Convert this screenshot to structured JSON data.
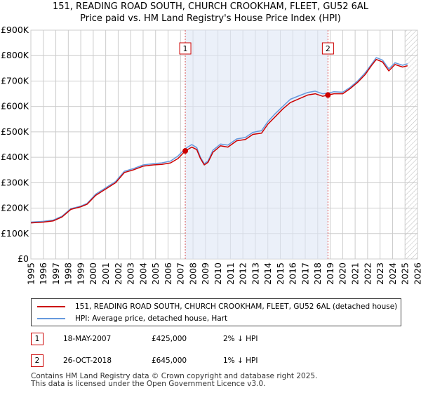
{
  "chart_data": {
    "type": "line",
    "title": "151, READING ROAD SOUTH, CHURCH CROOKHAM, FLEET, GU52 6AL",
    "subtitle": "Price paid vs. HM Land Registry's House Price Index (HPI)",
    "xlabel": "",
    "ylabel": "",
    "xlim": [
      1995,
      2026
    ],
    "ylim": [
      0,
      900000
    ],
    "y_ticks": [
      0,
      100000,
      200000,
      300000,
      400000,
      500000,
      600000,
      700000,
      800000,
      900000
    ],
    "y_tick_labels": [
      "£0",
      "£100K",
      "£200K",
      "£300K",
      "£400K",
      "£500K",
      "£600K",
      "£700K",
      "£800K",
      "£900K"
    ],
    "x_ticks": [
      "1995",
      "1996",
      "1997",
      "1998",
      "1999",
      "2000",
      "2001",
      "2002",
      "2003",
      "2004",
      "2005",
      "2006",
      "2007",
      "2008",
      "2009",
      "2010",
      "2011",
      "2012",
      "2013",
      "2014",
      "2015",
      "2016",
      "2017",
      "2018",
      "2019",
      "2020",
      "2021",
      "2022",
      "2023",
      "2024",
      "2025",
      "2026"
    ],
    "grid": true,
    "series": [
      {
        "name": "151, READING ROAD SOUTH, CHURCH CROOKHAM, FLEET, GU52 6AL (detached house)",
        "color": "#cc0000",
        "x": [
          1995.0,
          1996.0,
          1996.8,
          1997.5,
          1998.2,
          1999.0,
          1999.5,
          2000.2,
          2001.0,
          2001.8,
          2002.5,
          2003.2,
          2004.0,
          2004.8,
          2005.5,
          2006.2,
          2006.8,
          2007.38,
          2007.9,
          2008.3,
          2008.6,
          2008.9,
          2009.2,
          2009.6,
          2010.2,
          2010.8,
          2011.5,
          2012.2,
          2012.8,
          2013.5,
          2014.0,
          2014.6,
          2015.2,
          2015.8,
          2016.5,
          2017.2,
          2017.8,
          2018.4,
          2018.82,
          2019.3,
          2020.0,
          2020.6,
          2021.2,
          2021.8,
          2022.3,
          2022.7,
          2023.2,
          2023.7,
          2024.2,
          2024.8,
          2025.2
        ],
        "y": [
          142000,
          145000,
          150000,
          165000,
          195000,
          205000,
          215000,
          250000,
          275000,
          300000,
          340000,
          350000,
          365000,
          370000,
          372000,
          378000,
          395000,
          425000,
          440000,
          430000,
          395000,
          370000,
          380000,
          420000,
          445000,
          440000,
          465000,
          470000,
          490000,
          495000,
          530000,
          560000,
          590000,
          615000,
          630000,
          645000,
          650000,
          640000,
          645000,
          650000,
          650000,
          670000,
          695000,
          725000,
          760000,
          785000,
          775000,
          740000,
          765000,
          755000,
          760000
        ]
      },
      {
        "name": "HPI: Average price, detached house, Hart",
        "color": "#6699dd",
        "x": [
          1995.0,
          1996.0,
          1996.8,
          1997.5,
          1998.2,
          1999.0,
          1999.5,
          2000.2,
          2001.0,
          2001.8,
          2002.5,
          2003.2,
          2004.0,
          2004.8,
          2005.5,
          2006.2,
          2006.8,
          2007.38,
          2007.9,
          2008.3,
          2008.6,
          2008.9,
          2009.2,
          2009.6,
          2010.2,
          2010.8,
          2011.5,
          2012.2,
          2012.8,
          2013.5,
          2014.0,
          2014.6,
          2015.2,
          2015.8,
          2016.5,
          2017.2,
          2017.8,
          2018.4,
          2018.82,
          2019.3,
          2020.0,
          2020.6,
          2021.2,
          2021.8,
          2022.3,
          2022.7,
          2023.2,
          2023.7,
          2024.2,
          2024.8,
          2025.2
        ],
        "y": [
          145000,
          148000,
          153000,
          168000,
          198000,
          208000,
          218000,
          255000,
          280000,
          305000,
          345000,
          355000,
          370000,
          375000,
          378000,
          385000,
          405000,
          434000,
          450000,
          438000,
          400000,
          375000,
          385000,
          428000,
          452000,
          448000,
          472000,
          478000,
          498000,
          505000,
          540000,
          572000,
          600000,
          628000,
          642000,
          655000,
          660000,
          650000,
          652000,
          658000,
          656000,
          675000,
          700000,
          732000,
          765000,
          792000,
          782000,
          748000,
          772000,
          762000,
          768000
        ]
      }
    ],
    "sales": [
      {
        "label": "1",
        "date": "18-MAY-2007",
        "x": 2007.38,
        "price": 425000,
        "price_label": "£425,000",
        "hpi_note": "2% ↓ HPI"
      },
      {
        "label": "2",
        "date": "26-OCT-2018",
        "x": 2018.82,
        "price": 645000,
        "price_label": "£645,000",
        "hpi_note": "1% ↓ HPI"
      }
    ],
    "forecast_from": 2025.0
  },
  "legend": {
    "property_label": "151, READING ROAD SOUTH, CHURCH CROOKHAM, FLEET, GU52 6AL (detached house)",
    "hpi_label": "HPI: Average price, detached house, Hart",
    "property_color": "#cc0000",
    "hpi_color": "#6699dd"
  },
  "footer": {
    "line1": "Contains HM Land Registry data © Crown copyright and database right 2025.",
    "line2": "This data is licensed under the Open Government Licence v3.0."
  }
}
